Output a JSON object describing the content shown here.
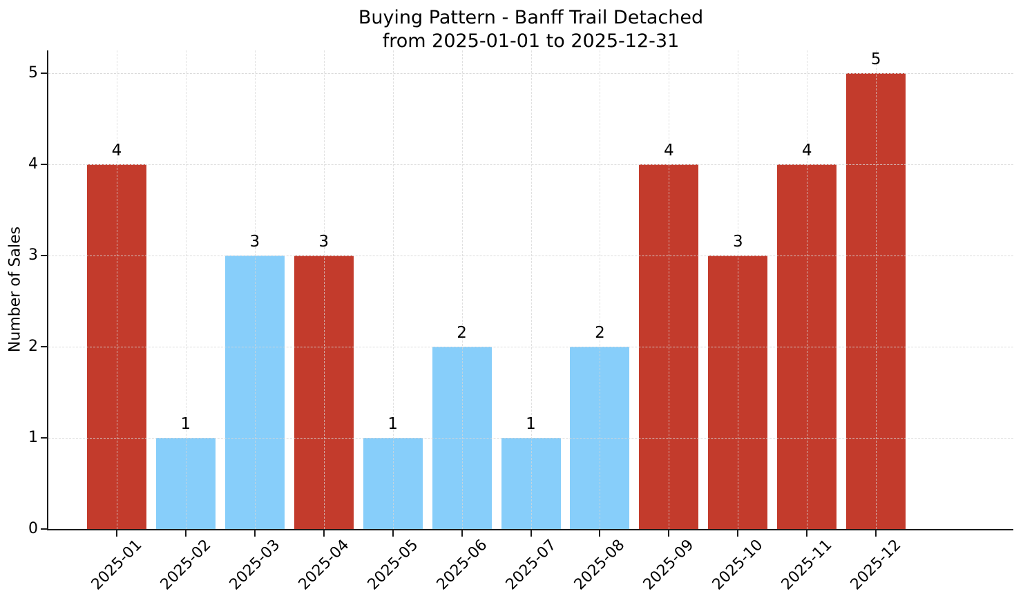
{
  "chart_data": {
    "type": "bar",
    "title_lines": [
      "Buying Pattern - Banff Trail Detached",
      "from 2025-01-01 to 2025-12-31"
    ],
    "title": "Buying Pattern - Banff Trail Detached\nfrom 2025-01-01 to 2025-12-31",
    "xlabel": "",
    "ylabel": "Number of Sales",
    "categories": [
      "2025-01",
      "2025-02",
      "2025-03",
      "2025-04",
      "2025-05",
      "2025-06",
      "2025-07",
      "2025-08",
      "2025-09",
      "2025-10",
      "2025-11",
      "2025-12"
    ],
    "values": [
      4,
      1,
      3,
      3,
      1,
      2,
      1,
      2,
      4,
      3,
      4,
      5
    ],
    "bar_colors": [
      "#c33b2c",
      "#87cefa",
      "#87cefa",
      "#c33b2c",
      "#87cefa",
      "#87cefa",
      "#87cefa",
      "#87cefa",
      "#c33b2c",
      "#c33b2c",
      "#c33b2c",
      "#c33b2c"
    ],
    "value_labels": [
      "4",
      "1",
      "3",
      "3",
      "1",
      "2",
      "1",
      "2",
      "4",
      "3",
      "4",
      "5"
    ],
    "yticks": [
      "0",
      "1",
      "2",
      "3",
      "4",
      "5"
    ],
    "ylim": [
      0,
      5.25
    ],
    "x_tick_rotation": 45,
    "grid": "dashed",
    "legend": null
  },
  "colors": {
    "bar_red": "#c33b2c",
    "bar_blue": "#87cefa",
    "grid": "#d6d6d6",
    "spine": "#1a1a1a",
    "background": "#ffffff",
    "text": "#000000"
  }
}
